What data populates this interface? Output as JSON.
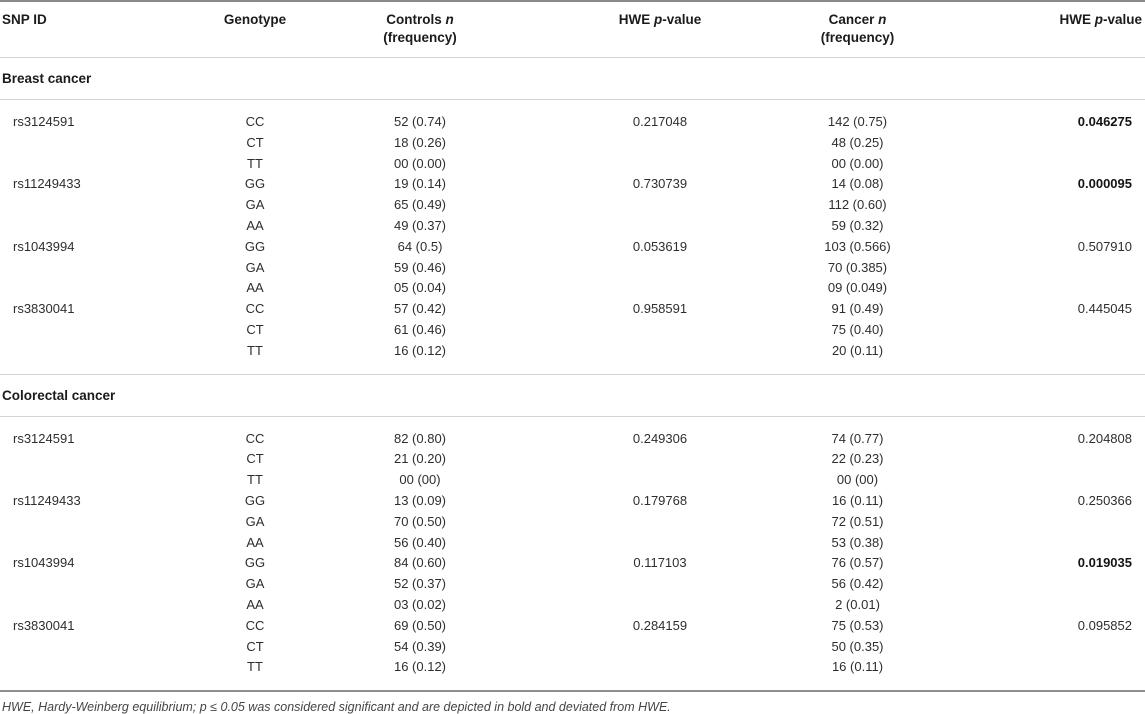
{
  "colors": {
    "background": "#ffffff",
    "text": "#2e2e2e",
    "header_text": "#1b1b1b",
    "rule_light": "#d3d3d3",
    "rule_frame": "#8a8a8a"
  },
  "table": {
    "header": {
      "snp_id": "SNP ID",
      "genotype": "Genotype",
      "controls": {
        "pre": "Controls",
        "it": "n",
        "line2": "(frequency)"
      },
      "hwe_controls": {
        "pre": "HWE",
        "it": "p",
        "post": "-value"
      },
      "cancer": {
        "pre": "Cancer",
        "it": "n",
        "line2": "(frequency)"
      },
      "hwe_cancer": {
        "pre": "HWE",
        "it": "p",
        "post": "-value"
      }
    },
    "sections": [
      {
        "title": "Breast cancer",
        "rows": [
          {
            "snp": "rs3124591",
            "genotype": "CC",
            "controls": "52 (0.74)",
            "hwe_controls": "0.217048",
            "cancer": "142 (0.75)",
            "hwe_cancer": "0.046275",
            "hwe_cancer_bold": true
          },
          {
            "snp": "",
            "genotype": "CT",
            "controls": "18 (0.26)",
            "hwe_controls": "",
            "cancer": "48 (0.25)",
            "hwe_cancer": "",
            "hwe_cancer_bold": false
          },
          {
            "snp": "",
            "genotype": "TT",
            "controls": "00 (0.00)",
            "hwe_controls": "",
            "cancer": "00 (0.00)",
            "hwe_cancer": "",
            "hwe_cancer_bold": false
          },
          {
            "snp": "rs11249433",
            "genotype": "GG",
            "controls": "19 (0.14)",
            "hwe_controls": "0.730739",
            "cancer": "14 (0.08)",
            "hwe_cancer": "0.000095",
            "hwe_cancer_bold": true
          },
          {
            "snp": "",
            "genotype": "GA",
            "controls": "65 (0.49)",
            "hwe_controls": "",
            "cancer": "112 (0.60)",
            "hwe_cancer": "",
            "hwe_cancer_bold": false
          },
          {
            "snp": "",
            "genotype": "AA",
            "controls": "49 (0.37)",
            "hwe_controls": "",
            "cancer": "59 (0.32)",
            "hwe_cancer": "",
            "hwe_cancer_bold": false
          },
          {
            "snp": "rs1043994",
            "genotype": "GG",
            "controls": "64 (0.5)",
            "hwe_controls": "0.053619",
            "cancer": "103 (0.566)",
            "hwe_cancer": "0.507910",
            "hwe_cancer_bold": false
          },
          {
            "snp": "",
            "genotype": "GA",
            "controls": "59 (0.46)",
            "hwe_controls": "",
            "cancer": "70 (0.385)",
            "hwe_cancer": "",
            "hwe_cancer_bold": false
          },
          {
            "snp": "",
            "genotype": "AA",
            "controls": "05 (0.04)",
            "hwe_controls": "",
            "cancer": "09 (0.049)",
            "hwe_cancer": "",
            "hwe_cancer_bold": false
          },
          {
            "snp": "rs3830041",
            "genotype": "CC",
            "controls": "57 (0.42)",
            "hwe_controls": "0.958591",
            "cancer": "91 (0.49)",
            "hwe_cancer": "0.445045",
            "hwe_cancer_bold": false
          },
          {
            "snp": "",
            "genotype": "CT",
            "controls": "61 (0.46)",
            "hwe_controls": "",
            "cancer": "75 (0.40)",
            "hwe_cancer": "",
            "hwe_cancer_bold": false
          },
          {
            "snp": "",
            "genotype": "TT",
            "controls": "16 (0.12)",
            "hwe_controls": "",
            "cancer": "20 (0.11)",
            "hwe_cancer": "",
            "hwe_cancer_bold": false
          }
        ]
      },
      {
        "title": "Colorectal cancer",
        "rows": [
          {
            "snp": "rs3124591",
            "genotype": "CC",
            "controls": "82 (0.80)",
            "hwe_controls": "0.249306",
            "cancer": "74 (0.77)",
            "hwe_cancer": "0.204808",
            "hwe_cancer_bold": false
          },
          {
            "snp": "",
            "genotype": "CT",
            "controls": "21 (0.20)",
            "hwe_controls": "",
            "cancer": "22 (0.23)",
            "hwe_cancer": "",
            "hwe_cancer_bold": false
          },
          {
            "snp": "",
            "genotype": "TT",
            "controls": "00 (00)",
            "hwe_controls": "",
            "cancer": "00 (00)",
            "hwe_cancer": "",
            "hwe_cancer_bold": false
          },
          {
            "snp": "rs11249433",
            "genotype": "GG",
            "controls": "13 (0.09)",
            "hwe_controls": "0.179768",
            "cancer": "16 (0.11)",
            "hwe_cancer": "0.250366",
            "hwe_cancer_bold": false
          },
          {
            "snp": "",
            "genotype": "GA",
            "controls": "70 (0.50)",
            "hwe_controls": "",
            "cancer": "72 (0.51)",
            "hwe_cancer": "",
            "hwe_cancer_bold": false
          },
          {
            "snp": "",
            "genotype": "AA",
            "controls": "56 (0.40)",
            "hwe_controls": "",
            "cancer": "53 (0.38)",
            "hwe_cancer": "",
            "hwe_cancer_bold": false
          },
          {
            "snp": "rs1043994",
            "genotype": "GG",
            "controls": "84 (0.60)",
            "hwe_controls": "0.117103",
            "cancer": "76 (0.57)",
            "hwe_cancer": "0.019035",
            "hwe_cancer_bold": true
          },
          {
            "snp": "",
            "genotype": "GA",
            "controls": "52 (0.37)",
            "hwe_controls": "",
            "cancer": "56 (0.42)",
            "hwe_cancer": "",
            "hwe_cancer_bold": false
          },
          {
            "snp": "",
            "genotype": "AA",
            "controls": "03 (0.02)",
            "hwe_controls": "",
            "cancer": "2 (0.01)",
            "hwe_cancer": "",
            "hwe_cancer_bold": false
          },
          {
            "snp": "rs3830041",
            "genotype": "CC",
            "controls": "69 (0.50)",
            "hwe_controls": "0.284159",
            "cancer": "75 (0.53)",
            "hwe_cancer": "0.095852",
            "hwe_cancer_bold": false
          },
          {
            "snp": "",
            "genotype": "CT",
            "controls": "54 (0.39)",
            "hwe_controls": "",
            "cancer": "50 (0.35)",
            "hwe_cancer": "",
            "hwe_cancer_bold": false
          },
          {
            "snp": "",
            "genotype": "TT",
            "controls": "16 (0.12)",
            "hwe_controls": "",
            "cancer": "16 (0.11)",
            "hwe_cancer": "",
            "hwe_cancer_bold": false
          }
        ]
      }
    ],
    "footnote": "HWE, Hardy-Weinberg equilibrium; p ≤ 0.05 was considered significant and are depicted in bold and deviated from HWE."
  }
}
